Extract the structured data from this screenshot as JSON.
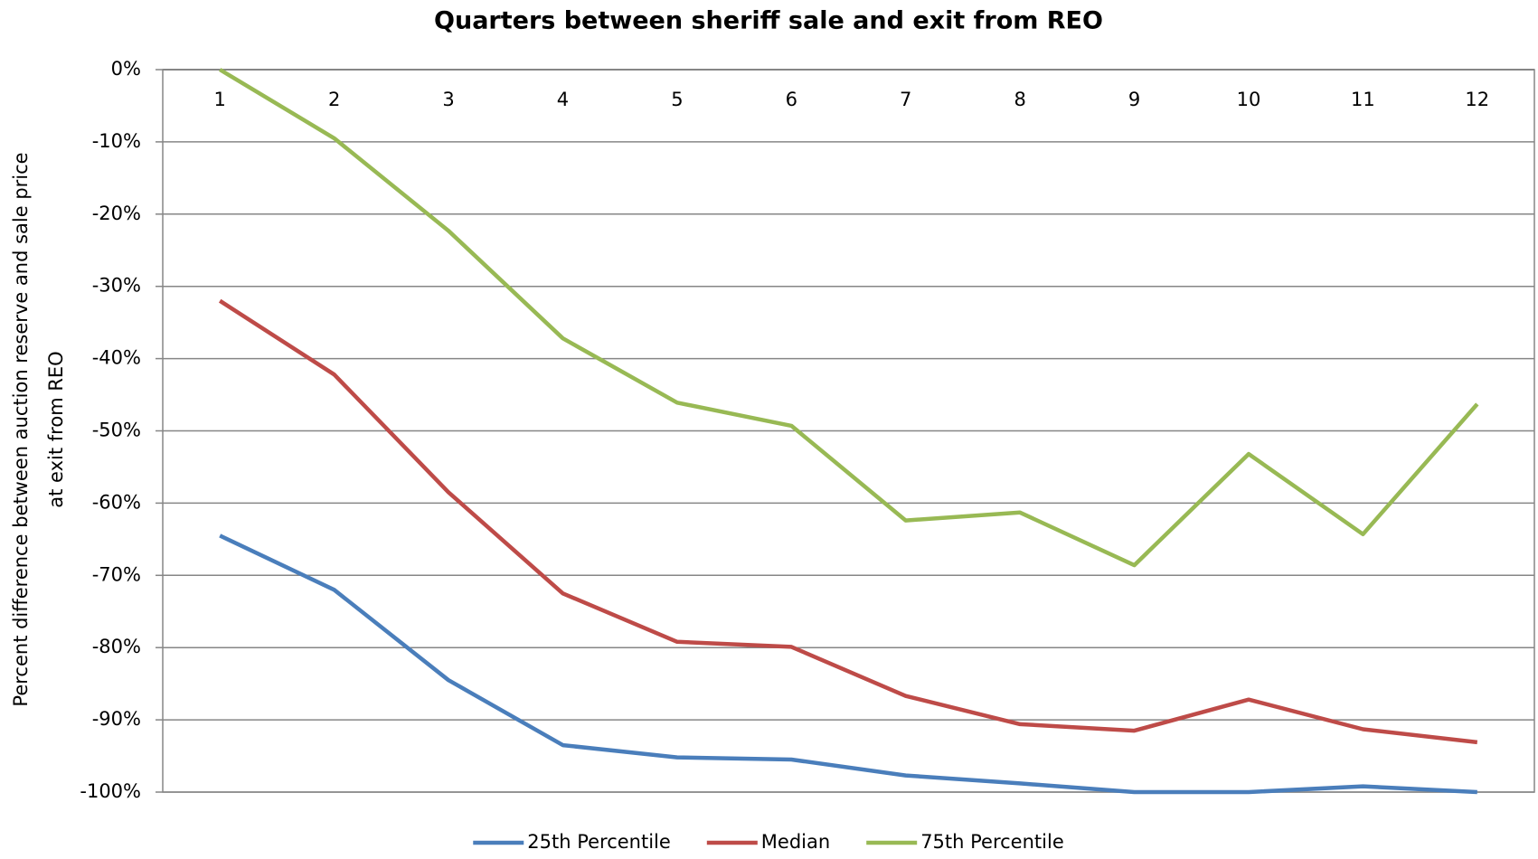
{
  "chart_data": {
    "type": "line",
    "title": "Quarters between sheriff sale and exit from REO",
    "y_label": [
      "Percent difference between auction reserve and  sale price",
      "at exit from REO"
    ],
    "categories": [
      "1",
      "2",
      "3",
      "4",
      "5",
      "6",
      "7",
      "8",
      "9",
      "10",
      "11",
      "12"
    ],
    "series": [
      {
        "name": "25th Percentile",
        "color": "#4a7ebb",
        "values": [
          -64.5,
          -72,
          -84.5,
          -93.5,
          -95.2,
          -95.5,
          -97.7,
          -98.8,
          -100,
          -100,
          -99.2,
          -100
        ]
      },
      {
        "name": "Median",
        "color": "#be4b48",
        "values": [
          -32,
          -42.2,
          -58.5,
          -72.5,
          -79.2,
          -79.9,
          -86.7,
          -90.6,
          -91.5,
          -87.2,
          -91.3,
          -93.1
        ]
      },
      {
        "name": "75th Percentile",
        "color": "#98b954",
        "values": [
          0,
          -9.5,
          -22.3,
          -37.2,
          -46.1,
          -49.3,
          -62.4,
          -61.3,
          -68.6,
          -53.2,
          -64.3,
          -46.3
        ]
      }
    ],
    "ylim": [
      -100,
      0
    ],
    "yticks": [
      {
        "value": -100,
        "label": "-100%"
      },
      {
        "value": -90,
        "label": "-90%"
      },
      {
        "value": -80,
        "label": "-80%"
      },
      {
        "value": -70,
        "label": "-70%"
      },
      {
        "value": -60,
        "label": "-60%"
      },
      {
        "value": -50,
        "label": "-50%"
      },
      {
        "value": -40,
        "label": "-40%"
      },
      {
        "value": -30,
        "label": "-30%"
      },
      {
        "value": -20,
        "label": "-20%"
      },
      {
        "value": -10,
        "label": "-10%"
      },
      {
        "value": 0,
        "label": "0%"
      }
    ],
    "grid": true,
    "legend": "bottom"
  }
}
